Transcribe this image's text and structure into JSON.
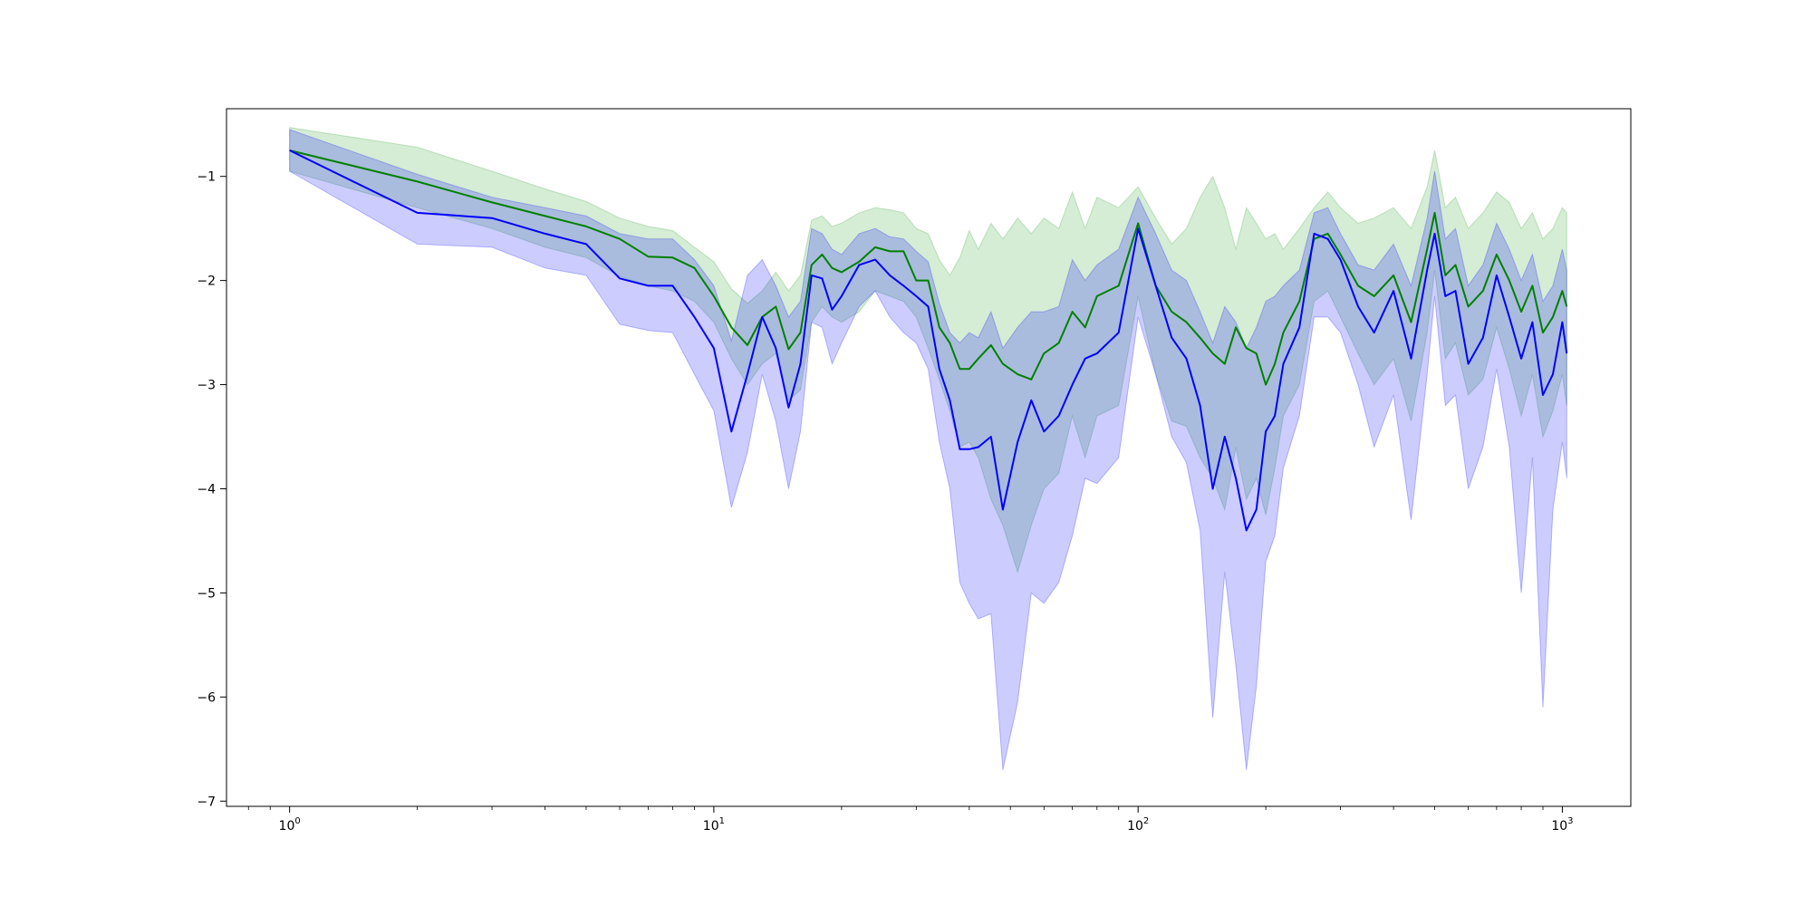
{
  "chart_data": {
    "type": "line",
    "title": "",
    "xlabel": "",
    "ylabel": "",
    "x_scale": "log",
    "xlim": [
      0.71,
      1450
    ],
    "ylim": [
      -7.05,
      -0.35
    ],
    "grid": false,
    "legend": "none",
    "x_ticks": [
      {
        "value": 1,
        "base": "10",
        "exp": "0"
      },
      {
        "value": 10,
        "base": "10",
        "exp": "1"
      },
      {
        "value": 100,
        "base": "10",
        "exp": "2"
      },
      {
        "value": 1000,
        "base": "10",
        "exp": "3"
      }
    ],
    "y_ticks": [
      {
        "value": -1,
        "label": "−1"
      },
      {
        "value": -2,
        "label": "−2"
      },
      {
        "value": -3,
        "label": "−3"
      },
      {
        "value": -4,
        "label": "−4"
      },
      {
        "value": -5,
        "label": "−5"
      },
      {
        "value": -6,
        "label": "−6"
      },
      {
        "value": -7,
        "label": "−7"
      }
    ],
    "series": [
      {
        "color": "#008000",
        "band_color": "#2ca02c",
        "x": [
          1,
          2,
          3,
          4,
          5,
          6,
          7,
          8,
          9,
          10,
          11,
          12,
          13,
          14,
          15,
          16,
          17,
          18,
          19,
          20,
          22,
          24,
          26,
          28,
          30,
          32,
          34,
          36,
          38,
          40,
          42,
          45,
          48,
          52,
          56,
          60,
          65,
          70,
          75,
          80,
          90,
          100,
          110,
          120,
          130,
          140,
          150,
          160,
          170,
          180,
          190,
          200,
          210,
          220,
          240,
          260,
          280,
          300,
          330,
          360,
          400,
          440,
          480,
          500,
          530,
          560,
          600,
          650,
          700,
          750,
          800,
          850,
          900,
          950,
          1000,
          1024
        ],
        "y": [
          -0.75,
          -1.05,
          -1.25,
          -1.38,
          -1.48,
          -1.6,
          -1.77,
          -1.78,
          -1.88,
          -2.15,
          -2.45,
          -2.62,
          -2.35,
          -2.25,
          -2.66,
          -2.5,
          -1.85,
          -1.75,
          -1.88,
          -1.92,
          -1.82,
          -1.68,
          -1.72,
          -1.72,
          -2.0,
          -2.0,
          -2.45,
          -2.6,
          -2.85,
          -2.85,
          -2.75,
          -2.62,
          -2.8,
          -2.9,
          -2.95,
          -2.7,
          -2.6,
          -2.3,
          -2.45,
          -2.15,
          -2.05,
          -1.45,
          -2.05,
          -2.3,
          -2.4,
          -2.55,
          -2.7,
          -2.8,
          -2.45,
          -2.65,
          -2.7,
          -3.0,
          -2.8,
          -2.5,
          -2.2,
          -1.6,
          -1.55,
          -1.75,
          -2.05,
          -2.15,
          -1.95,
          -2.4,
          -1.7,
          -1.35,
          -1.95,
          -1.85,
          -2.25,
          -2.1,
          -1.75,
          -2.0,
          -2.3,
          -2.05,
          -2.5,
          -2.35,
          -2.1,
          -2.25
        ],
        "upper": [
          -0.53,
          -0.72,
          -0.95,
          -1.12,
          -1.24,
          -1.4,
          -1.48,
          -1.52,
          -1.68,
          -1.82,
          -2.08,
          -2.22,
          -2.1,
          -1.92,
          -2.1,
          -1.95,
          -1.42,
          -1.38,
          -1.48,
          -1.45,
          -1.35,
          -1.3,
          -1.32,
          -1.35,
          -1.5,
          -1.55,
          -1.8,
          -1.95,
          -1.78,
          -1.52,
          -1.7,
          -1.45,
          -1.6,
          -1.4,
          -1.55,
          -1.4,
          -1.5,
          -1.15,
          -1.5,
          -1.2,
          -1.3,
          -1.1,
          -1.4,
          -1.65,
          -1.5,
          -1.2,
          -1.0,
          -1.3,
          -1.7,
          -1.3,
          -1.45,
          -1.6,
          -1.55,
          -1.7,
          -1.5,
          -1.3,
          -1.15,
          -1.3,
          -1.45,
          -1.4,
          -1.3,
          -1.5,
          -1.1,
          -0.75,
          -1.3,
          -1.2,
          -1.5,
          -1.35,
          -1.15,
          -1.25,
          -1.5,
          -1.35,
          -1.6,
          -1.5,
          -1.3,
          -1.35
        ],
        "lower": [
          -0.95,
          -1.3,
          -1.5,
          -1.68,
          -1.78,
          -1.96,
          -2.05,
          -2.1,
          -2.2,
          -2.4,
          -2.75,
          -3.0,
          -2.8,
          -2.7,
          -3.15,
          -3.05,
          -2.4,
          -2.25,
          -2.35,
          -2.4,
          -2.3,
          -2.1,
          -2.15,
          -2.2,
          -2.35,
          -2.65,
          -2.95,
          -3.25,
          -3.6,
          -3.55,
          -3.7,
          -4.1,
          -4.35,
          -4.8,
          -4.35,
          -4.0,
          -3.85,
          -3.3,
          -3.7,
          -3.3,
          -3.2,
          -2.15,
          -2.9,
          -3.35,
          -3.4,
          -3.7,
          -3.9,
          -4.2,
          -3.6,
          -4.1,
          -3.9,
          -4.25,
          -3.8,
          -3.3,
          -3.0,
          -2.2,
          -2.1,
          -2.35,
          -2.7,
          -3.0,
          -2.75,
          -3.35,
          -2.5,
          -1.9,
          -2.75,
          -2.6,
          -3.1,
          -2.95,
          -2.45,
          -2.85,
          -3.3,
          -2.9,
          -3.5,
          -3.25,
          -2.9,
          -3.2
        ]
      },
      {
        "color": "#0000ff",
        "band_color": "#0000ff",
        "x": [
          1,
          2,
          3,
          4,
          5,
          6,
          7,
          8,
          9,
          10,
          11,
          12,
          13,
          14,
          15,
          16,
          17,
          18,
          19,
          20,
          22,
          24,
          26,
          28,
          30,
          32,
          34,
          36,
          38,
          40,
          42,
          45,
          48,
          52,
          56,
          60,
          65,
          70,
          75,
          80,
          90,
          100,
          110,
          120,
          130,
          140,
          150,
          160,
          170,
          180,
          190,
          200,
          210,
          220,
          240,
          260,
          280,
          300,
          330,
          360,
          400,
          440,
          480,
          500,
          530,
          560,
          600,
          650,
          700,
          750,
          800,
          850,
          900,
          950,
          1000,
          1024
        ],
        "y": [
          -0.75,
          -1.35,
          -1.4,
          -1.55,
          -1.65,
          -1.98,
          -2.05,
          -2.05,
          -2.35,
          -2.65,
          -3.45,
          -2.9,
          -2.35,
          -2.65,
          -3.22,
          -2.8,
          -1.95,
          -1.98,
          -2.28,
          -2.15,
          -1.85,
          -1.8,
          -1.95,
          -2.05,
          -2.15,
          -2.25,
          -2.85,
          -3.15,
          -3.62,
          -3.62,
          -3.6,
          -3.5,
          -4.2,
          -3.55,
          -3.15,
          -3.45,
          -3.3,
          -3.0,
          -2.75,
          -2.7,
          -2.5,
          -1.5,
          -2.05,
          -2.55,
          -2.75,
          -3.2,
          -4.0,
          -3.5,
          -3.9,
          -4.4,
          -4.2,
          -3.45,
          -3.3,
          -2.8,
          -2.45,
          -1.55,
          -1.6,
          -1.8,
          -2.25,
          -2.5,
          -2.1,
          -2.75,
          -1.9,
          -1.55,
          -2.15,
          -2.1,
          -2.8,
          -2.55,
          -1.95,
          -2.35,
          -2.75,
          -2.4,
          -3.1,
          -2.9,
          -2.4,
          -2.7
        ],
        "upper": [
          -0.55,
          -0.98,
          -1.2,
          -1.3,
          -1.38,
          -1.55,
          -1.6,
          -1.6,
          -1.8,
          -2.05,
          -2.58,
          -1.95,
          -1.8,
          -2.05,
          -2.35,
          -2.2,
          -1.5,
          -1.55,
          -1.7,
          -1.75,
          -1.55,
          -1.5,
          -1.58,
          -1.6,
          -1.72,
          -1.82,
          -2.22,
          -2.5,
          -2.6,
          -2.5,
          -2.55,
          -2.3,
          -2.65,
          -2.45,
          -2.3,
          -2.3,
          -2.25,
          -1.8,
          -2.0,
          -1.85,
          -1.7,
          -1.2,
          -1.55,
          -1.9,
          -2.0,
          -2.3,
          -2.6,
          -2.25,
          -2.4,
          -2.65,
          -2.45,
          -2.2,
          -2.15,
          -2.05,
          -1.9,
          -1.35,
          -1.3,
          -1.55,
          -1.85,
          -1.9,
          -1.65,
          -2.05,
          -1.4,
          -0.95,
          -1.6,
          -1.5,
          -2.05,
          -1.85,
          -1.45,
          -1.7,
          -2.0,
          -1.75,
          -2.2,
          -2.05,
          -1.7,
          -1.9
        ],
        "lower": [
          -0.95,
          -1.65,
          -1.68,
          -1.88,
          -1.95,
          -2.42,
          -2.48,
          -2.5,
          -2.9,
          -3.25,
          -4.18,
          -3.65,
          -2.9,
          -3.35,
          -4.0,
          -3.45,
          -2.4,
          -2.45,
          -2.8,
          -2.6,
          -2.25,
          -2.1,
          -2.35,
          -2.5,
          -2.6,
          -2.85,
          -3.55,
          -4.0,
          -4.9,
          -5.1,
          -5.25,
          -5.2,
          -6.7,
          -6.05,
          -5.0,
          -5.1,
          -4.9,
          -4.45,
          -3.9,
          -3.95,
          -3.7,
          -2.35,
          -2.9,
          -3.5,
          -3.75,
          -4.4,
          -6.2,
          -4.8,
          -5.7,
          -6.7,
          -5.9,
          -4.7,
          -4.45,
          -3.8,
          -3.3,
          -2.35,
          -2.35,
          -2.5,
          -3.0,
          -3.6,
          -3.1,
          -4.3,
          -2.9,
          -2.15,
          -3.2,
          -3.1,
          -4.0,
          -3.6,
          -2.85,
          -3.6,
          -5.0,
          -3.7,
          -6.1,
          -4.2,
          -3.55,
          -3.9
        ]
      }
    ]
  }
}
